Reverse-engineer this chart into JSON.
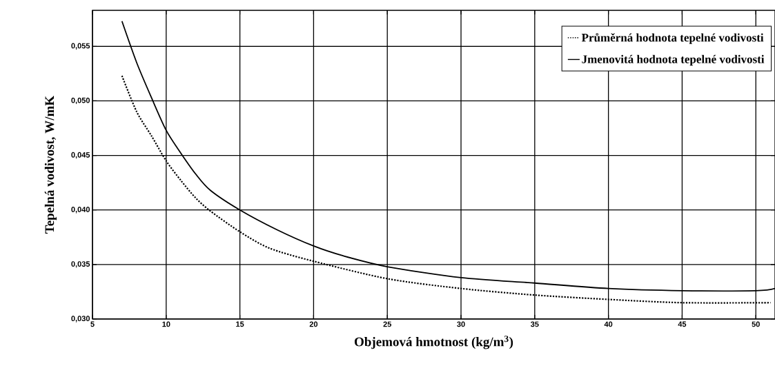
{
  "chart_data": {
    "type": "line",
    "xlabel": "Objemová hmotnost  (kg/m$^{3}$)",
    "ylabel": "Tepelná vodivost, W/mK",
    "xlim": [
      5,
      51.3
    ],
    "ylim": [
      0.03,
      0.0583
    ],
    "xticks": [
      5,
      10,
      15,
      20,
      25,
      30,
      35,
      40,
      45,
      50
    ],
    "yticks": [
      {
        "value": 0.03,
        "label": "0,030"
      },
      {
        "value": 0.035,
        "label": "0,035"
      },
      {
        "value": 0.04,
        "label": "0,040"
      },
      {
        "value": 0.045,
        "label": "0,045"
      },
      {
        "value": 0.05,
        "label": "0,050"
      },
      {
        "value": 0.055,
        "label": "0,055"
      }
    ],
    "grid": true,
    "legend": "top right",
    "series": [
      {
        "name": "Průměrná hodnota tepelné vodivosti",
        "color": "#000000",
        "line_style": "dotted",
        "x": [
          7,
          8,
          9,
          10,
          11,
          12,
          13,
          15,
          17,
          20,
          25,
          30,
          35,
          40,
          45,
          51
        ],
        "values": [
          0.0523,
          0.049,
          0.0468,
          0.0445,
          0.0427,
          0.0411,
          0.0399,
          0.038,
          0.0365,
          0.0353,
          0.0337,
          0.0328,
          0.0322,
          0.0318,
          0.0315,
          0.0315
        ]
      },
      {
        "name": "Jmenovitá hodnota tepelné vodivosti",
        "color": "#000000",
        "line_style": "solid",
        "x": [
          7,
          8,
          9,
          10,
          11,
          12,
          13,
          15,
          17.5,
          20,
          22,
          25,
          30,
          35,
          40,
          45,
          50,
          51.3
        ],
        "values": [
          0.0573,
          0.0535,
          0.0503,
          0.0473,
          0.0452,
          0.0433,
          0.0418,
          0.04,
          0.0382,
          0.0367,
          0.0358,
          0.0348,
          0.0338,
          0.0333,
          0.0328,
          0.0326,
          0.0326,
          0.0328
        ]
      }
    ]
  }
}
